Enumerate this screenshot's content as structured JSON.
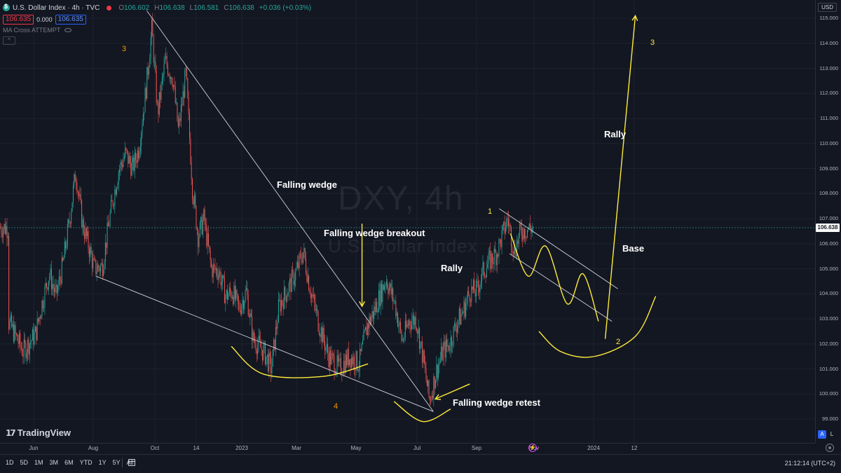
{
  "header": {
    "title": "U.S. Dollar Index · 4h · TVC",
    "ohlc": [
      {
        "k": "O",
        "v": "106.602"
      },
      {
        "k": "H",
        "v": "106.638"
      },
      {
        "k": "L",
        "v": "106.581"
      },
      {
        "k": "C",
        "v": "106.638"
      }
    ],
    "change": "+0.036 (+0.03%)",
    "sell_price": "106.635",
    "spread": "0.000",
    "buy_price": "106.635",
    "indicator": "MA Cross ATTEMPT"
  },
  "watermark": {
    "symbol": "DXY, 4h",
    "name": "U.S. Dollar Index"
  },
  "currency_button": "USD",
  "last_price_label": "106.638",
  "annotations": [
    {
      "id": "falling-wedge",
      "text": "Falling wedge"
    },
    {
      "id": "falling-wedge-breakout",
      "text": "Falling wedge breakout"
    },
    {
      "id": "rally-mid",
      "text": "Rally"
    },
    {
      "id": "falling-wedge-retest",
      "text": "Falling wedge retest"
    },
    {
      "id": "rally-top",
      "text": "Rally"
    },
    {
      "id": "base",
      "text": "Base"
    }
  ],
  "wave_labels": [
    {
      "id": "wave-3-left",
      "text": "3",
      "color": "#ff9800"
    },
    {
      "id": "wave-4",
      "text": "4",
      "color": "#ff9800"
    },
    {
      "id": "wave-1",
      "text": "1",
      "color": "#ffeb3b"
    },
    {
      "id": "wave-2",
      "text": "2",
      "color": "#ffeb3b"
    },
    {
      "id": "wave-3-right",
      "text": "3",
      "color": "#ffeb3b"
    }
  ],
  "logo": "TradingView",
  "range_buttons": [
    "1D",
    "5D",
    "1M",
    "3M",
    "6M",
    "YTD",
    "1Y",
    "5Y",
    "All"
  ],
  "clock": "21:12:14 (UTC+2)",
  "scale_buttons": [
    "A",
    "L"
  ],
  "colors": {
    "up": "#26a69a",
    "down": "#ef5350",
    "annotation": "#ffeb3b",
    "trendline": "#d1d4dc",
    "background": "#131722"
  },
  "chart_data": {
    "type": "candlestick",
    "symbol": "DXY",
    "timeframe": "4h",
    "y_axis": {
      "ticks": [
        "115.000",
        "114.000",
        "113.000",
        "112.000",
        "111.000",
        "110.000",
        "109.000",
        "108.000",
        "107.000",
        "106.000",
        "105.000",
        "104.000",
        "103.000",
        "102.000",
        "101.000",
        "100.000",
        "99.000"
      ],
      "ylim": [
        98.5,
        115.5
      ]
    },
    "x_axis": {
      "ticks": [
        "Jun",
        "Aug",
        "Oct",
        "14",
        "2023",
        "Mar",
        "May",
        "Jul",
        "Sep",
        "Nov",
        "2024",
        "12"
      ]
    },
    "last_price": 106.638,
    "price_path": [
      {
        "t": "2022-05-20",
        "v": 102.9
      },
      {
        "t": "2022-05-27",
        "v": 101.7
      },
      {
        "t": "2022-06-03",
        "v": 102.4
      },
      {
        "t": "2022-06-10",
        "v": 103.7
      },
      {
        "t": "2022-06-17",
        "v": 104.8
      },
      {
        "t": "2022-06-24",
        "v": 103.9
      },
      {
        "t": "2022-07-01",
        "v": 105.2
      },
      {
        "t": "2022-07-08",
        "v": 107.0
      },
      {
        "t": "2022-07-14",
        "v": 108.9
      },
      {
        "t": "2022-07-21",
        "v": 106.8
      },
      {
        "t": "2022-07-28",
        "v": 105.8
      },
      {
        "t": "2022-08-02",
        "v": 105.0
      },
      {
        "t": "2022-08-10",
        "v": 105.1
      },
      {
        "t": "2022-08-18",
        "v": 107.2
      },
      {
        "t": "2022-08-26",
        "v": 108.9
      },
      {
        "t": "2022-09-02",
        "v": 109.6
      },
      {
        "t": "2022-09-09",
        "v": 109.0
      },
      {
        "t": "2022-09-15",
        "v": 109.8
      },
      {
        "t": "2022-09-22",
        "v": 112.1
      },
      {
        "t": "2022-09-28",
        "v": 114.6
      },
      {
        "t": "2022-10-04",
        "v": 111.2
      },
      {
        "t": "2022-10-12",
        "v": 113.3
      },
      {
        "t": "2022-10-20",
        "v": 112.6
      },
      {
        "t": "2022-10-26",
        "v": 110.5
      },
      {
        "t": "2022-11-03",
        "v": 112.8
      },
      {
        "t": "2022-11-10",
        "v": 108.2
      },
      {
        "t": "2022-11-16",
        "v": 106.3
      },
      {
        "t": "2022-11-22",
        "v": 107.0
      },
      {
        "t": "2022-11-30",
        "v": 105.0
      },
      {
        "t": "2022-12-08",
        "v": 104.9
      },
      {
        "t": "2022-12-15",
        "v": 103.9
      },
      {
        "t": "2022-12-22",
        "v": 104.1
      },
      {
        "t": "2022-12-29",
        "v": 103.4
      },
      {
        "t": "2023-01-06",
        "v": 104.1
      },
      {
        "t": "2023-01-13",
        "v": 102.2
      },
      {
        "t": "2023-01-20",
        "v": 101.9
      },
      {
        "t": "2023-01-26",
        "v": 101.6
      },
      {
        "t": "2023-02-02",
        "v": 101.0
      },
      {
        "t": "2023-02-10",
        "v": 103.5
      },
      {
        "t": "2023-02-20",
        "v": 104.2
      },
      {
        "t": "2023-03-01",
        "v": 104.9
      },
      {
        "t": "2023-03-08",
        "v": 105.7
      },
      {
        "t": "2023-03-15",
        "v": 104.2
      },
      {
        "t": "2023-03-24",
        "v": 102.8
      },
      {
        "t": "2023-04-03",
        "v": 101.5
      },
      {
        "t": "2023-04-14",
        "v": 101.0
      },
      {
        "t": "2023-04-24",
        "v": 101.5
      },
      {
        "t": "2023-05-04",
        "v": 101.2
      },
      {
        "t": "2023-05-12",
        "v": 102.7
      },
      {
        "t": "2023-05-20",
        "v": 103.4
      },
      {
        "t": "2023-05-31",
        "v": 104.6
      },
      {
        "t": "2023-06-09",
        "v": 103.6
      },
      {
        "t": "2023-06-16",
        "v": 102.1
      },
      {
        "t": "2023-06-23",
        "v": 102.9
      },
      {
        "t": "2023-06-30",
        "v": 103.0
      },
      {
        "t": "2023-07-07",
        "v": 101.5
      },
      {
        "t": "2023-07-14",
        "v": 99.7
      },
      {
        "t": "2023-07-21",
        "v": 100.9
      },
      {
        "t": "2023-07-28",
        "v": 101.7
      },
      {
        "t": "2023-08-04",
        "v": 102.0
      },
      {
        "t": "2023-08-11",
        "v": 102.8
      },
      {
        "t": "2023-08-18",
        "v": 103.3
      },
      {
        "t": "2023-08-25",
        "v": 104.1
      },
      {
        "t": "2023-09-01",
        "v": 104.1
      },
      {
        "t": "2023-09-08",
        "v": 104.9
      },
      {
        "t": "2023-09-15",
        "v": 105.3
      },
      {
        "t": "2023-09-22",
        "v": 105.6
      },
      {
        "t": "2023-09-29",
        "v": 106.4
      },
      {
        "t": "2023-10-04",
        "v": 107.0
      },
      {
        "t": "2023-10-11",
        "v": 105.7
      },
      {
        "t": "2023-10-18",
        "v": 106.5
      },
      {
        "t": "2023-10-25",
        "v": 106.6
      },
      {
        "t": "2023-10-31",
        "v": 106.64
      }
    ],
    "drawings": {
      "wedge_upper": [
        {
          "t": "2022-09-23",
          "v": 115.3
        },
        {
          "t": "2023-07-18",
          "v": 99.3
        }
      ],
      "wedge_lower": [
        {
          "t": "2022-08-04",
          "v": 104.7
        },
        {
          "t": "2023-07-18",
          "v": 99.3
        }
      ],
      "channel_upper": [
        {
          "t": "2023-09-25",
          "v": 107.4
        },
        {
          "t": "2024-01-26",
          "v": 104.2
        }
      ],
      "channel_lower": [
        {
          "t": "2023-10-06",
          "v": 105.6
        },
        {
          "t": "2024-01-20",
          "v": 102.9
        }
      ],
      "projection_zigzag": [
        {
          "t": "2023-10-07",
          "v": 106.4
        },
        {
          "t": "2023-10-26",
          "v": 104.7
        },
        {
          "t": "2023-11-13",
          "v": 105.9
        },
        {
          "t": "2023-12-05",
          "v": 103.6
        },
        {
          "t": "2023-12-21",
          "v": 104.8
        },
        {
          "t": "2024-01-06",
          "v": 102.9
        }
      ],
      "rally_projection": [
        {
          "t": "2024-01-13",
          "v": 102.2
        },
        {
          "t": "2024-02-13",
          "v": 115.1
        }
      ],
      "base_arc": [
        {
          "t": "2023-11-06",
          "v": 102.5
        },
        {
          "t": "2023-11-28",
          "v": 101.7
        },
        {
          "t": "2024-01-02",
          "v": 101.5
        },
        {
          "t": "2024-02-13",
          "v": 102.3
        },
        {
          "t": "2024-03-03",
          "v": 103.9
        }
      ],
      "bottom_arc_1": [
        {
          "t": "2022-12-21",
          "v": 101.9
        },
        {
          "t": "2023-01-24",
          "v": 100.8
        },
        {
          "t": "2023-03-28",
          "v": 100.7
        },
        {
          "t": "2023-05-13",
          "v": 101.2
        }
      ],
      "bottom_arc_2": [
        {
          "t": "2023-06-08",
          "v": 99.7
        },
        {
          "t": "2023-07-07",
          "v": 98.9
        },
        {
          "t": "2023-08-05",
          "v": 99.4
        }
      ],
      "breakout_arrow": [
        {
          "t": "2023-05-07",
          "v": 106.8
        },
        {
          "t": "2023-05-07",
          "v": 103.5
        }
      ],
      "retest_arrow": [
        {
          "t": "2023-08-25",
          "v": 100.4
        },
        {
          "t": "2023-07-20",
          "v": 99.8
        }
      ]
    }
  }
}
